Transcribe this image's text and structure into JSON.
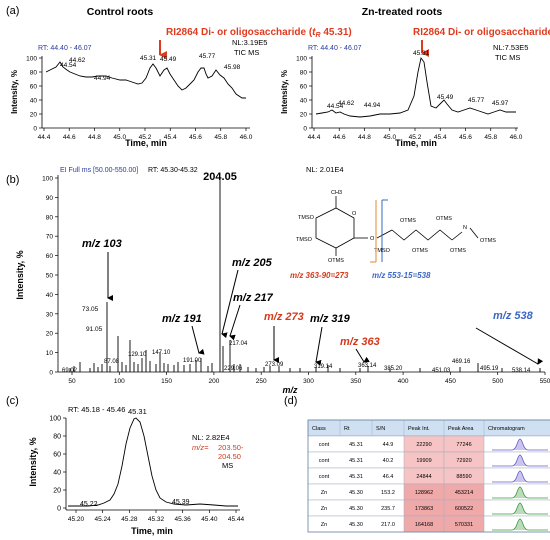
{
  "panel_a": {
    "label": "(a)",
    "control_title": "Control roots",
    "zn_title": "Zn-treated roots",
    "arrow_label_prefix": "RI2864 Di- or oligosaccharide (",
    "arrow_label_tr": "t",
    "arrow_label_sub": "R",
    "arrow_label_suffix": " 45.31)",
    "left_rt": "RT: 44.40 - 46.07",
    "right_rt": "RT: 44.40 - 46.07",
    "left_nl": "NL:3.19E5",
    "left_tic": "TIC  MS",
    "right_nl": "NL:7.53E5",
    "right_tic": "TIC  MS",
    "ylabel": "Intensity, %",
    "xlabel": "Time, min",
    "y_ticks": [
      "0",
      "20",
      "40",
      "60",
      "80",
      "100"
    ],
    "x_ticks": [
      "44.4",
      "44.6",
      "44.8",
      "45.0",
      "45.2",
      "45.4",
      "45.6",
      "45.8",
      "46.0"
    ],
    "left_peaks": [
      "44.54",
      "44.62",
      "44.94",
      "45.31",
      "45.49",
      "45.77",
      "45.98"
    ],
    "right_peaks": [
      "44.54",
      "44.62",
      "44.94",
      "45.31",
      "45.49",
      "45.77",
      "45.97"
    ]
  },
  "panel_b": {
    "label": "(b)",
    "header_left": "EI Full ms [50.00-550.00]",
    "header_rt": "RT: 45.30-45.32",
    "header_nl": "NL: 2.01E4",
    "ylabel": "Intensity, %",
    "xlabel": "m/z",
    "y_ticks": [
      "0",
      "10",
      "20",
      "30",
      "40",
      "50",
      "60",
      "70",
      "80",
      "90",
      "100"
    ],
    "x_ticks": [
      "50",
      "100",
      "150",
      "200",
      "250",
      "300",
      "350",
      "400",
      "450",
      "500",
      "550"
    ],
    "peak_labels": [
      "204.05",
      "73.05",
      "91.05",
      "69.02",
      "87.08",
      "129.10",
      "147.10",
      "191.00",
      "217.04",
      "229.06",
      "273.09",
      "319.14",
      "363.14",
      "385.20",
      "451.03",
      "469.16",
      "495.19",
      "538.14"
    ],
    "anno_103": "m/z 103",
    "anno_205": "m/z 205",
    "anno_217": "m/z 217",
    "anno_191": "m/z 191",
    "anno_273": "m/z 273",
    "anno_319": "m/z 319",
    "anno_363": "m/z 363",
    "anno_538": "m/z 538",
    "frag_orange": "m/z 363-90=273",
    "frag_blue": "m/z 553-15=538",
    "struct_labels": [
      "CH3",
      "O",
      "TMSO",
      "TMSO",
      "OTMS",
      "OTMS",
      "OTMS",
      "OTMS",
      "TMSO",
      "OTMS",
      "N",
      "OTMS",
      "O"
    ]
  },
  "panel_c": {
    "label": "(c)",
    "rt": "RT: 45.18 - 45.46",
    "nl": "NL: 2.82E4",
    "mz_prefix": "m/z=",
    "mz_range1": "203.50-",
    "mz_range2": "204.50",
    "ms": "MS",
    "ylabel": "Intensity, %",
    "xlabel": "Time, min",
    "y_ticks": [
      "0",
      "20",
      "40",
      "60",
      "80",
      "100"
    ],
    "x_ticks": [
      "45.20",
      "45.24",
      "45.28",
      "45.32",
      "45.36",
      "45.40",
      "45.44"
    ],
    "peak_labels": [
      "45.31",
      "45.22",
      "45.39"
    ]
  },
  "panel_d": {
    "label": "(d)",
    "columns": [
      "Class",
      "Rt",
      "S/N",
      "Peak Int.",
      "Peak Area",
      "Chromatogram"
    ],
    "rows": [
      [
        "cont",
        "45.31",
        "44.9",
        "22290",
        "77246"
      ],
      [
        "cont",
        "45.31",
        "40.2",
        "19909",
        "72920"
      ],
      [
        "cont",
        "45.31",
        "46.4",
        "24844",
        "88590"
      ],
      [
        "Zn",
        "45.30",
        "153.2",
        "128962",
        "453214"
      ],
      [
        "Zn",
        "45.30",
        "235.7",
        "173863",
        "600522"
      ],
      [
        "Zn",
        "45.30",
        "217.0",
        "164168",
        "570331"
      ]
    ],
    "colors": {
      "header_bg": "#cfe0f2",
      "pink": "#f6c4c4",
      "pink_dark": "#f0a9a9",
      "purple": "#6a5acd",
      "green": "#3a9a3a"
    }
  }
}
